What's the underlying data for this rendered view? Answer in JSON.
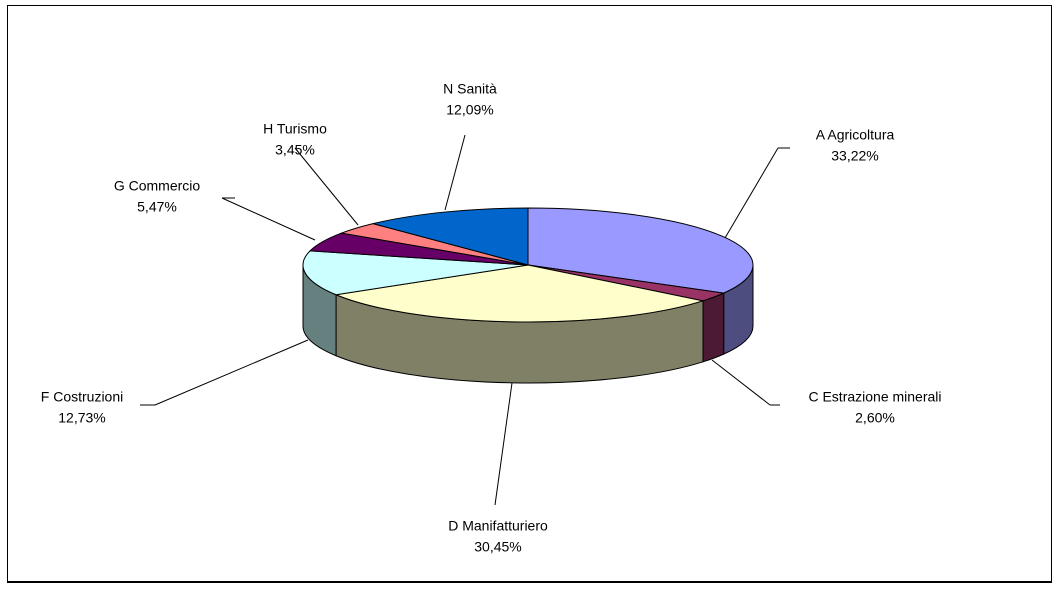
{
  "chart_data": {
    "type": "pie",
    "categories": [
      "A  Agricoltura",
      "C  Estrazione minerali",
      "D  Manifatturiero",
      "F  Costruzioni",
      "G  Commercio",
      "H  Turismo",
      "N  Sanità"
    ],
    "values": [
      33.22,
      2.6,
      30.45,
      12.73,
      5.47,
      3.45,
      12.09
    ],
    "value_labels": [
      "33,22%",
      "2,60%",
      "30,45%",
      "12,73%",
      "5,47%",
      "3,45%",
      "12,09%"
    ],
    "colors": [
      "#9999ff",
      "#993366",
      "#ffffcc",
      "#ccffff",
      "#660066",
      "#ff8080",
      "#0066cc"
    ]
  }
}
